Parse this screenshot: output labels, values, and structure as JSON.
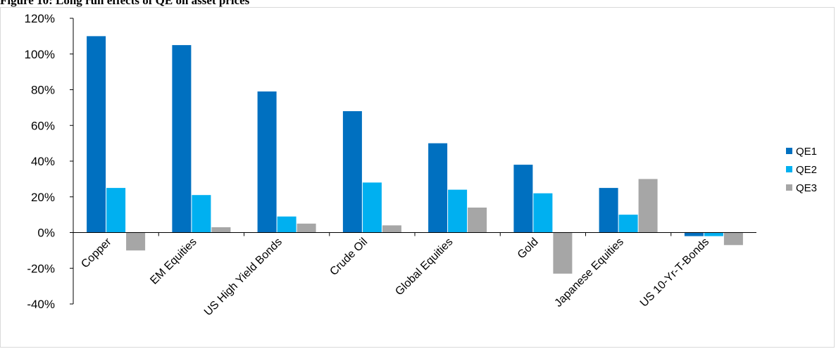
{
  "figure_title": "Figure 10: Long run effects of QE on asset prices",
  "colors": {
    "QE1": "#0070c0",
    "QE2": "#00b0f0",
    "QE3": "#a6a6a6",
    "axis": "#000000"
  },
  "chart_data": {
    "type": "bar",
    "title": "",
    "xlabel": "",
    "ylabel": "",
    "categories": [
      "Copper",
      "EM Equities",
      "US High Yield Bonds",
      "Crude Oil",
      "Global Equities",
      "Gold",
      "Japanese Equities",
      "US 10-Yr-T-Bonds"
    ],
    "series": [
      {
        "name": "QE1",
        "values": [
          110,
          105,
          79,
          68,
          50,
          38,
          25,
          -2
        ]
      },
      {
        "name": "QE2",
        "values": [
          25,
          21,
          9,
          28,
          24,
          22,
          10,
          -2
        ]
      },
      {
        "name": "QE3",
        "values": [
          -10,
          3,
          5,
          4,
          14,
          -23,
          30,
          -7
        ]
      }
    ],
    "ylim": [
      -40,
      120
    ],
    "yticks": [
      -40,
      -20,
      0,
      20,
      40,
      60,
      80,
      100,
      120
    ],
    "ytick_labels": [
      "-40%",
      "-20%",
      "0%",
      "20%",
      "40%",
      "60%",
      "80%",
      "100%",
      "120%"
    ],
    "legend_position": "right",
    "grid": false
  }
}
